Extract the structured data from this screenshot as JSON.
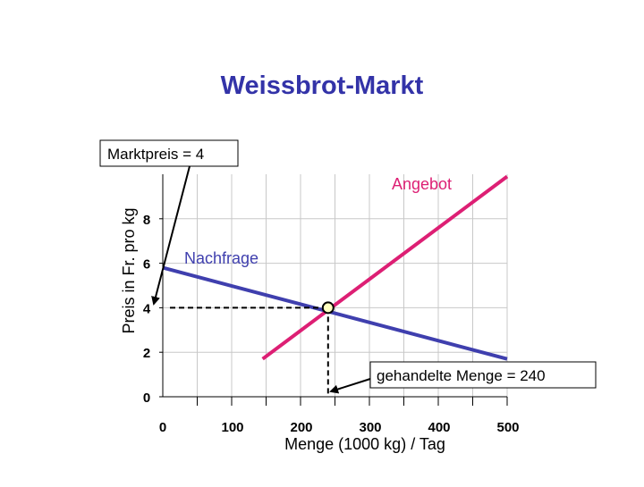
{
  "chart_data": {
    "type": "line",
    "title": "Weissbrot-Markt",
    "xlabel": "Menge (1000 kg) / Tag",
    "ylabel": "Preis in Fr. pro kg",
    "xlim": [
      0,
      500
    ],
    "ylim": [
      0,
      10
    ],
    "x_ticks": [
      0,
      100,
      200,
      300,
      400,
      500
    ],
    "x_tick_labels": [
      "0",
      "100",
      "200",
      "300",
      "400",
      "500"
    ],
    "y_ticks": [
      0,
      2,
      4,
      6,
      8
    ],
    "y_tick_labels": [
      "0",
      "2",
      "4",
      "6",
      "8"
    ],
    "grid": true,
    "series": [
      {
        "name": "Nachfrage",
        "color": "#3f3fae",
        "x": [
          0,
          500
        ],
        "y": [
          5.8,
          1.7
        ]
      },
      {
        "name": "Angebot",
        "color": "#dd1f74",
        "x": [
          145,
          500
        ],
        "y": [
          1.7,
          9.9
        ]
      }
    ],
    "equilibrium": {
      "x": 240,
      "y": 4
    },
    "annotations": {
      "price_box": "Marktpreis = 4",
      "quantity_box": "gehandelte Menge = 240"
    }
  },
  "colors": {
    "title": "#3333a8",
    "nachfrage": "#3f3fae",
    "angebot": "#dd1f74",
    "axis_text": "#000000",
    "grid": "#c8c8c8",
    "marker_fill": "#ffffc0"
  }
}
